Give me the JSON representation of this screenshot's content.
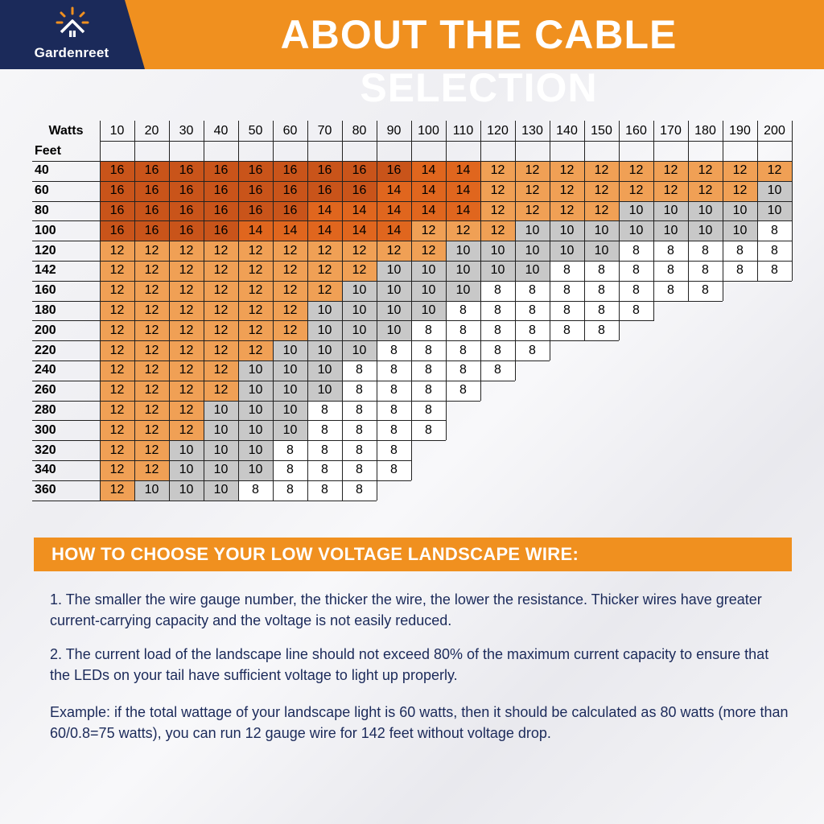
{
  "brand": {
    "name": "Gardenreet",
    "logo_icon": "sun-roof-icon"
  },
  "title": "ABOUT THE CABLE SELECTION",
  "colors": {
    "accent_orange": "#f0901f",
    "navy": "#1b2a5a",
    "gauge_16": "#c9541a",
    "gauge_14": "#e0661e",
    "gauge_12": "#f0a055",
    "gauge_10": "#c8c8c8",
    "gauge_8": "#ffffff"
  },
  "table": {
    "watts_label": "Watts",
    "feet_label": "Feet",
    "watts": [
      "10",
      "20",
      "30",
      "40",
      "50",
      "60",
      "70",
      "80",
      "90",
      "100",
      "110",
      "120",
      "130",
      "140",
      "150",
      "160",
      "170",
      "180",
      "190",
      "200"
    ],
    "rows": [
      {
        "feet": "40",
        "gauges": [
          "16",
          "16",
          "16",
          "16",
          "16",
          "16",
          "16",
          "16",
          "16",
          "14",
          "14",
          "12",
          "12",
          "12",
          "12",
          "12",
          "12",
          "12",
          "12",
          "12"
        ]
      },
      {
        "feet": "60",
        "gauges": [
          "16",
          "16",
          "16",
          "16",
          "16",
          "16",
          "16",
          "16",
          "14",
          "14",
          "14",
          "12",
          "12",
          "12",
          "12",
          "12",
          "12",
          "12",
          "12",
          "10"
        ]
      },
      {
        "feet": "80",
        "gauges": [
          "16",
          "16",
          "16",
          "16",
          "16",
          "16",
          "14",
          "14",
          "14",
          "14",
          "14",
          "12",
          "12",
          "12",
          "12",
          "10",
          "10",
          "10",
          "10",
          "10"
        ]
      },
      {
        "feet": "100",
        "gauges": [
          "16",
          "16",
          "16",
          "16",
          "14",
          "14",
          "14",
          "14",
          "14",
          "12",
          "12",
          "12",
          "10",
          "10",
          "10",
          "10",
          "10",
          "10",
          "10",
          "8"
        ]
      },
      {
        "feet": "120",
        "gauges": [
          "12",
          "12",
          "12",
          "12",
          "12",
          "12",
          "12",
          "12",
          "12",
          "12",
          "10",
          "10",
          "10",
          "10",
          "10",
          "8",
          "8",
          "8",
          "8",
          "8"
        ]
      },
      {
        "feet": "142",
        "gauges": [
          "12",
          "12",
          "12",
          "12",
          "12",
          "12",
          "12",
          "12",
          "10",
          "10",
          "10",
          "10",
          "10",
          "8",
          "8",
          "8",
          "8",
          "8",
          "8",
          "8"
        ]
      },
      {
        "feet": "160",
        "gauges": [
          "12",
          "12",
          "12",
          "12",
          "12",
          "12",
          "12",
          "10",
          "10",
          "10",
          "10",
          "8",
          "8",
          "8",
          "8",
          "8",
          "8",
          "8"
        ]
      },
      {
        "feet": "180",
        "gauges": [
          "12",
          "12",
          "12",
          "12",
          "12",
          "12",
          "10",
          "10",
          "10",
          "10",
          "8",
          "8",
          "8",
          "8",
          "8",
          "8"
        ]
      },
      {
        "feet": "200",
        "gauges": [
          "12",
          "12",
          "12",
          "12",
          "12",
          "12",
          "10",
          "10",
          "10",
          "8",
          "8",
          "8",
          "8",
          "8",
          "8"
        ]
      },
      {
        "feet": "220",
        "gauges": [
          "12",
          "12",
          "12",
          "12",
          "12",
          "10",
          "10",
          "10",
          "8",
          "8",
          "8",
          "8",
          "8"
        ]
      },
      {
        "feet": "240",
        "gauges": [
          "12",
          "12",
          "12",
          "12",
          "10",
          "10",
          "10",
          "8",
          "8",
          "8",
          "8",
          "8"
        ]
      },
      {
        "feet": "260",
        "gauges": [
          "12",
          "12",
          "12",
          "12",
          "10",
          "10",
          "10",
          "8",
          "8",
          "8",
          "8"
        ]
      },
      {
        "feet": "280",
        "gauges": [
          "12",
          "12",
          "12",
          "10",
          "10",
          "10",
          "8",
          "8",
          "8",
          "8"
        ]
      },
      {
        "feet": "300",
        "gauges": [
          "12",
          "12",
          "12",
          "10",
          "10",
          "10",
          "8",
          "8",
          "8",
          "8"
        ]
      },
      {
        "feet": "320",
        "gauges": [
          "12",
          "12",
          "10",
          "10",
          "10",
          "8",
          "8",
          "8",
          "8"
        ]
      },
      {
        "feet": "340",
        "gauges": [
          "12",
          "12",
          "10",
          "10",
          "10",
          "8",
          "8",
          "8",
          "8"
        ]
      },
      {
        "feet": "360",
        "gauges": [
          "12",
          "10",
          "10",
          "10",
          "8",
          "8",
          "8",
          "8"
        ]
      }
    ]
  },
  "guide": {
    "heading": "HOW TO CHOOSE YOUR LOW VOLTAGE LANDSCAPE WIRE:",
    "para1": "1. The smaller the wire gauge number, the thicker the wire, the lower the resistance. Thicker wires have greater current-carrying capacity and the voltage is not easily reduced.",
    "para2": "2. The current load of the landscape line should not exceed 80% of the maximum current capacity to ensure that the LEDs on your tail have sufficient voltage to light up properly.",
    "example": "Example: if the total wattage of your landscape light is 60 watts, then it should be calculated as 80 watts (more than 60/0.8=75 watts), you can run 12 gauge wire for 142 feet without voltage drop."
  }
}
